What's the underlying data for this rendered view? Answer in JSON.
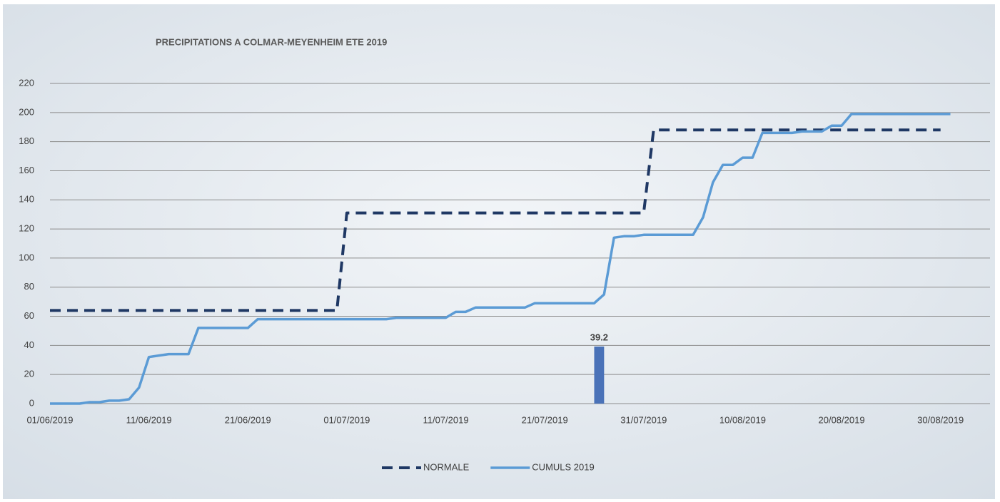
{
  "chart_data": {
    "type": "line",
    "title": "PRECIPITATIONS A COLMAR-MEYENHEIM ETE 2019",
    "x": [
      "01/06/2019",
      "02/06/2019",
      "03/06/2019",
      "04/06/2019",
      "05/06/2019",
      "06/06/2019",
      "07/06/2019",
      "08/06/2019",
      "09/06/2019",
      "10/06/2019",
      "11/06/2019",
      "12/06/2019",
      "13/06/2019",
      "14/06/2019",
      "15/06/2019",
      "16/06/2019",
      "17/06/2019",
      "18/06/2019",
      "19/06/2019",
      "20/06/2019",
      "21/06/2019",
      "22/06/2019",
      "23/06/2019",
      "24/06/2019",
      "25/06/2019",
      "26/06/2019",
      "27/06/2019",
      "28/06/2019",
      "29/06/2019",
      "30/06/2019",
      "01/07/2019",
      "02/07/2019",
      "03/07/2019",
      "04/07/2019",
      "05/07/2019",
      "06/07/2019",
      "07/07/2019",
      "08/07/2019",
      "09/07/2019",
      "10/07/2019",
      "11/07/2019",
      "12/07/2019",
      "13/07/2019",
      "14/07/2019",
      "15/07/2019",
      "16/07/2019",
      "17/07/2019",
      "18/07/2019",
      "19/07/2019",
      "20/07/2019",
      "21/07/2019",
      "22/07/2019",
      "23/07/2019",
      "24/07/2019",
      "25/07/2019",
      "26/07/2019",
      "27/07/2019",
      "28/07/2019",
      "29/07/2019",
      "30/07/2019",
      "31/07/2019",
      "01/08/2019",
      "02/08/2019",
      "03/08/2019",
      "04/08/2019",
      "05/08/2019",
      "06/08/2019",
      "07/08/2019",
      "08/08/2019",
      "09/08/2019",
      "10/08/2019",
      "11/08/2019",
      "12/08/2019",
      "13/08/2019",
      "14/08/2019",
      "15/08/2019",
      "16/08/2019",
      "17/08/2019",
      "18/08/2019",
      "19/08/2019",
      "20/08/2019",
      "21/08/2019",
      "22/08/2019",
      "23/08/2019",
      "24/08/2019",
      "25/08/2019",
      "26/08/2019",
      "27/08/2019",
      "28/08/2019",
      "29/08/2019",
      "30/08/2019",
      "31/08/2019"
    ],
    "series": [
      {
        "name": "NORMALE",
        "color": "#1f3864",
        "dashed": true,
        "x": [
          "01/06/2019",
          "30/06/2019",
          "01/07/2019",
          "31/07/2019",
          "01/08/2019",
          "30/08/2019"
        ],
        "values": [
          64,
          64,
          131,
          131,
          188,
          188
        ]
      },
      {
        "name": "CUMULS 2019",
        "color": "#5b9bd5",
        "values": [
          0,
          0,
          0,
          0,
          1,
          1,
          2,
          2,
          3,
          11,
          32,
          33,
          34,
          34,
          34,
          52,
          52,
          52,
          52,
          52,
          52,
          58,
          58,
          58,
          58,
          58,
          58,
          58,
          58,
          58,
          58,
          58,
          58,
          58,
          58,
          59,
          59,
          59,
          59,
          59,
          59,
          63,
          63,
          66,
          66,
          66,
          66,
          66,
          66,
          69,
          69,
          69,
          69,
          69,
          69,
          69,
          75,
          114,
          115,
          115,
          116,
          116,
          116,
          116,
          116,
          116,
          128,
          152,
          164,
          164,
          169,
          169,
          186,
          186,
          186,
          186,
          187,
          187,
          187,
          191,
          191,
          199,
          199,
          199,
          199,
          199,
          199,
          199,
          199,
          199,
          199,
          199
        ]
      },
      {
        "type": "bar",
        "color": "#4a72b8",
        "x": [
          "26/07/2019"
        ],
        "values": [
          39.2
        ]
      }
    ],
    "xlim": [
      "01/06/2019",
      "04/09/2019"
    ],
    "xticks": [
      "01/06/2019",
      "11/06/2019",
      "21/06/2019",
      "01/07/2019",
      "11/07/2019",
      "21/07/2019",
      "31/07/2019",
      "10/08/2019",
      "20/08/2019",
      "30/08/2019"
    ],
    "ylim": [
      0,
      220
    ],
    "yticks": [
      0,
      20,
      40,
      60,
      80,
      100,
      120,
      140,
      160,
      180,
      200,
      220
    ],
    "grid": true,
    "legend": "bottom"
  }
}
